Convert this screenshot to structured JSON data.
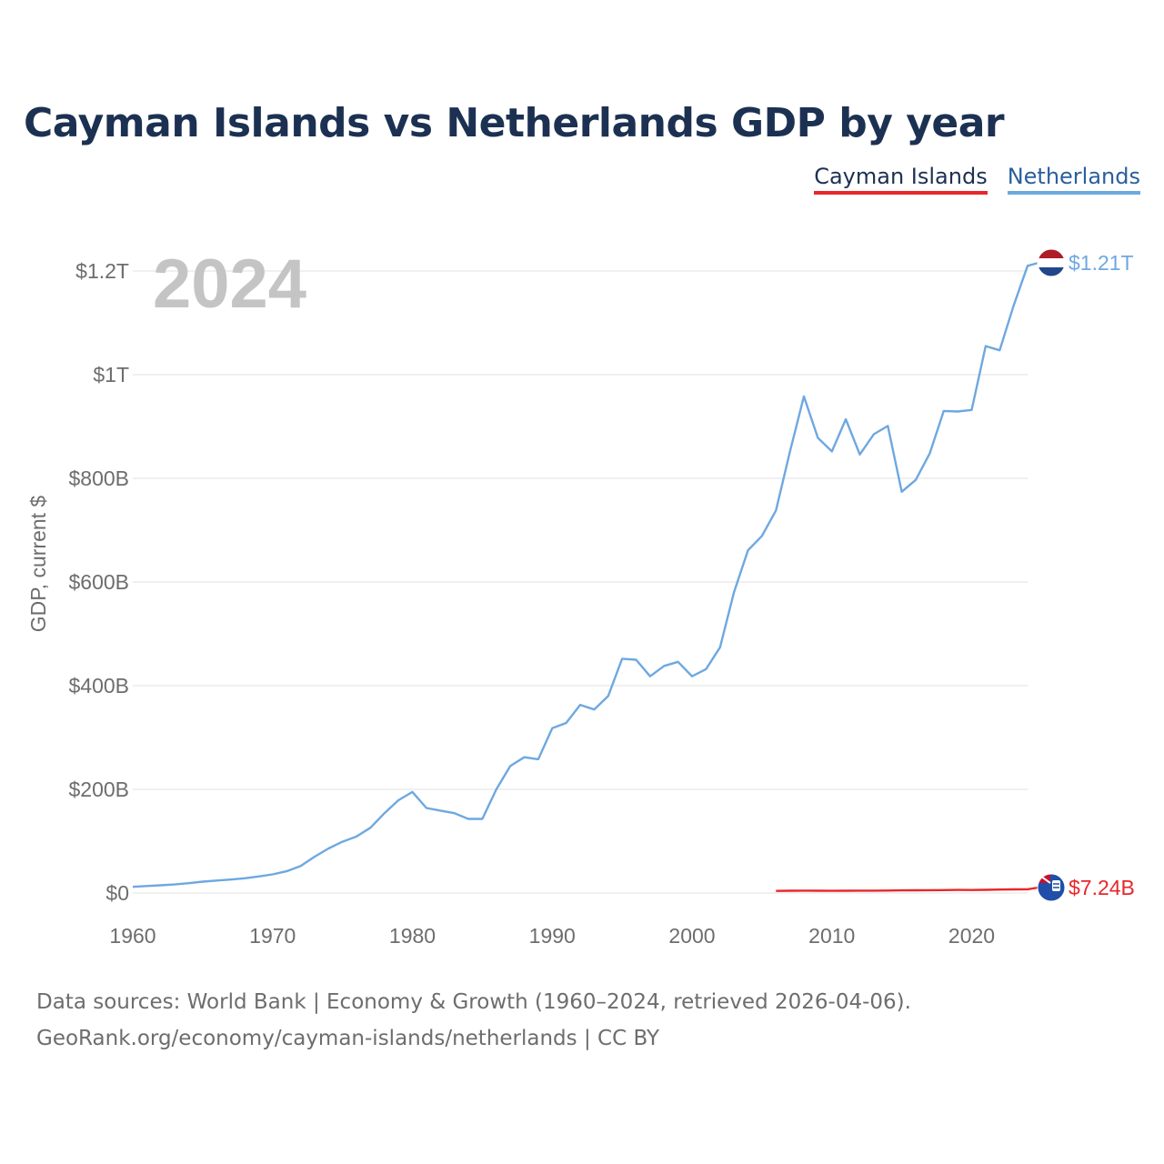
{
  "title": "Cayman Islands vs Netherlands GDP by year",
  "legend": [
    {
      "label": "Cayman Islands",
      "color": "#e8262b"
    },
    {
      "label": "Netherlands",
      "color": "#6ea8e0"
    }
  ],
  "colors": {
    "cayman": "#e8262b",
    "netherlands": "#6ea8e0",
    "title": "#1c3152",
    "grid": "#e6e6e6",
    "year_watermark": "#c4c4c4"
  },
  "source": {
    "line1": "Data sources: World Bank | Economy & Growth (1960–2024, retrieved 2026-04-06).",
    "line2": "GeoRank.org/economy/cayman-islands/netherlands | CC BY"
  },
  "chart_data": {
    "type": "line",
    "title": "Cayman Islands vs Netherlands GDP by year",
    "ylabel": "GDP, current $",
    "xlabel": "",
    "year_label": "2024",
    "xlim": [
      1960,
      2024
    ],
    "ylim": [
      0,
      1200
    ],
    "y_unit": "billions USD",
    "x_ticks": [
      1960,
      1970,
      1980,
      1990,
      2000,
      2010,
      2020
    ],
    "x_tick_labels": [
      "1960",
      "1970",
      "1980",
      "1990",
      "2000",
      "2010",
      "2020"
    ],
    "y_ticks": [
      0,
      200,
      400,
      600,
      800,
      1000,
      1200
    ],
    "y_tick_labels": [
      "$0",
      "$200B",
      "$400B",
      "$600B",
      "$800B",
      "$1T",
      "$1.2T"
    ],
    "series": [
      {
        "name": "Netherlands",
        "color": "#6ea8e0",
        "end_label": "$1.21T",
        "x": [
          1960,
          1961,
          1962,
          1963,
          1964,
          1965,
          1966,
          1967,
          1968,
          1969,
          1970,
          1971,
          1972,
          1973,
          1974,
          1975,
          1976,
          1977,
          1978,
          1979,
          1980,
          1981,
          1982,
          1983,
          1984,
          1985,
          1986,
          1987,
          1988,
          1989,
          1990,
          1991,
          1992,
          1993,
          1994,
          1995,
          1996,
          1997,
          1998,
          1999,
          2000,
          2001,
          2002,
          2003,
          2004,
          2005,
          2006,
          2007,
          2008,
          2009,
          2010,
          2011,
          2012,
          2013,
          2014,
          2015,
          2016,
          2017,
          2018,
          2019,
          2020,
          2021,
          2022,
          2023,
          2024
        ],
        "values": [
          12,
          13.5,
          15,
          16.5,
          19,
          22,
          24,
          26,
          28.5,
          32,
          36,
          42,
          52,
          70,
          86,
          99,
          109,
          126,
          154,
          179,
          195,
          164,
          159,
          154,
          143,
          143,
          200,
          245,
          262,
          258,
          318,
          328,
          363,
          354,
          380,
          452,
          450,
          418,
          438,
          446,
          418,
          432,
          474,
          580,
          661,
          689,
          738,
          851,
          958,
          878,
          852,
          914,
          846,
          885,
          901,
          774,
          797,
          848,
          930,
          929,
          932,
          1055,
          1047,
          1133,
          1210
        ]
      },
      {
        "name": "Cayman Islands",
        "color": "#e8262b",
        "end_label": "$7.24B",
        "x": [
          2006,
          2007,
          2008,
          2009,
          2010,
          2011,
          2012,
          2013,
          2014,
          2015,
          2016,
          2017,
          2018,
          2019,
          2020,
          2021,
          2022,
          2023,
          2024
        ],
        "values": [
          4.0,
          4.3,
          4.5,
          4.3,
          4.2,
          4.4,
          4.5,
          4.6,
          4.8,
          5.0,
          5.2,
          5.4,
          5.7,
          6.0,
          5.8,
          6.1,
          6.6,
          7.1,
          7.24
        ]
      }
    ]
  }
}
